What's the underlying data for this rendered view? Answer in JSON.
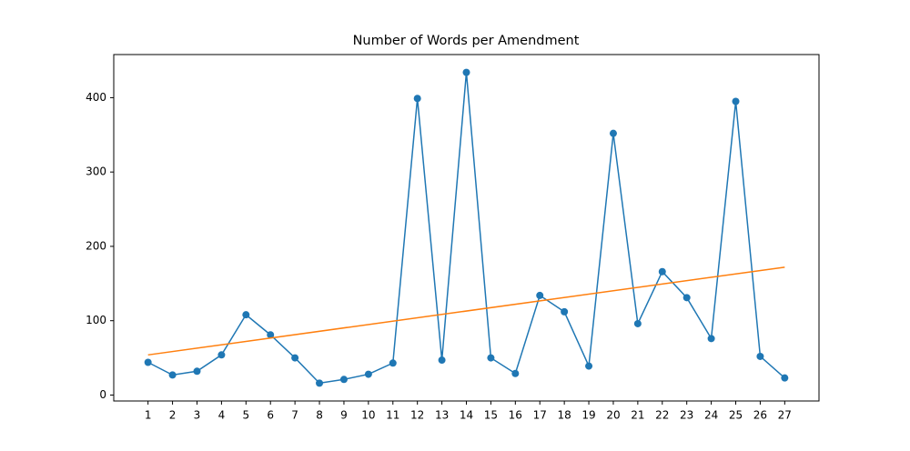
{
  "chart_data": {
    "type": "line",
    "title": "Number of Words per Amendment",
    "x": [
      1,
      2,
      3,
      4,
      5,
      6,
      7,
      8,
      9,
      10,
      11,
      12,
      13,
      14,
      15,
      16,
      17,
      18,
      19,
      20,
      21,
      22,
      23,
      24,
      25,
      26,
      27
    ],
    "series": [
      {
        "color": "#1f77b4",
        "marker": "o",
        "x": [
          1,
          2,
          3,
          4,
          5,
          6,
          7,
          8,
          9,
          10,
          11,
          12,
          13,
          14,
          15,
          16,
          17,
          18,
          19,
          20,
          21,
          22,
          23,
          24,
          25,
          26,
          27
        ],
        "values": [
          44,
          27,
          32,
          54,
          108,
          81,
          50,
          16,
          21,
          28,
          43,
          399,
          47,
          434,
          50,
          29,
          134,
          112,
          39,
          352,
          96,
          166,
          131,
          76,
          395,
          52,
          23
        ]
      },
      {
        "color": "#ff7f0e",
        "marker": null,
        "x": [
          1,
          27
        ],
        "values": [
          54,
          172
        ]
      }
    ],
    "xlim": [
      -0.4,
      28.4
    ],
    "ylim": [
      -8,
      458
    ],
    "xticks": [
      1,
      2,
      3,
      4,
      5,
      6,
      7,
      8,
      9,
      10,
      11,
      12,
      13,
      14,
      15,
      16,
      17,
      18,
      19,
      20,
      21,
      22,
      23,
      24,
      25,
      26,
      27
    ],
    "yticks": [
      0,
      100,
      200,
      300,
      400
    ],
    "grid": false
  }
}
